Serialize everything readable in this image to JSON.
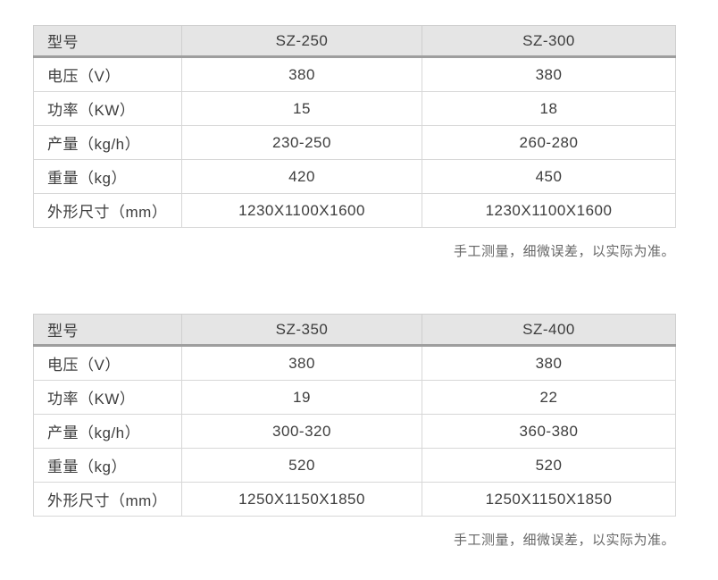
{
  "tables": [
    {
      "header": {
        "label": "型号",
        "model1": "SZ-250",
        "model2": "SZ-300"
      },
      "rows": [
        {
          "label": "电压（V）",
          "v1": "380",
          "v2": "380"
        },
        {
          "label": "功率（KW）",
          "v1": "15",
          "v2": "18"
        },
        {
          "label": "产量（kg/h）",
          "v1": "230-250",
          "v2": "260-280"
        },
        {
          "label": "重量（kg）",
          "v1": "420",
          "v2": "450"
        },
        {
          "label": "外形尺寸（mm）",
          "v1": "1230X1100X1600",
          "v2": "1230X1100X1600"
        }
      ],
      "note": "手工测量，细微误差，以实际为准。"
    },
    {
      "header": {
        "label": "型号",
        "model1": "SZ-350",
        "model2": "SZ-400"
      },
      "rows": [
        {
          "label": "电压（V）",
          "v1": "380",
          "v2": "380"
        },
        {
          "label": "功率（KW）",
          "v1": "19",
          "v2": "22"
        },
        {
          "label": "产量（kg/h）",
          "v1": "300-320",
          "v2": "360-380"
        },
        {
          "label": "重量（kg）",
          "v1": "520",
          "v2": "520"
        },
        {
          "label": "外形尺寸（mm）",
          "v1": "1250X1150X1850",
          "v2": "1250X1150X1850"
        }
      ],
      "note": "手工测量，细微误差，以实际为准。"
    }
  ],
  "colors": {
    "header_bg": "#e5e5e5",
    "header_rule": "#9e9e9e",
    "grid_line": "#d7d7d7",
    "text": "#3d3d3d",
    "note_text": "#666666"
  }
}
